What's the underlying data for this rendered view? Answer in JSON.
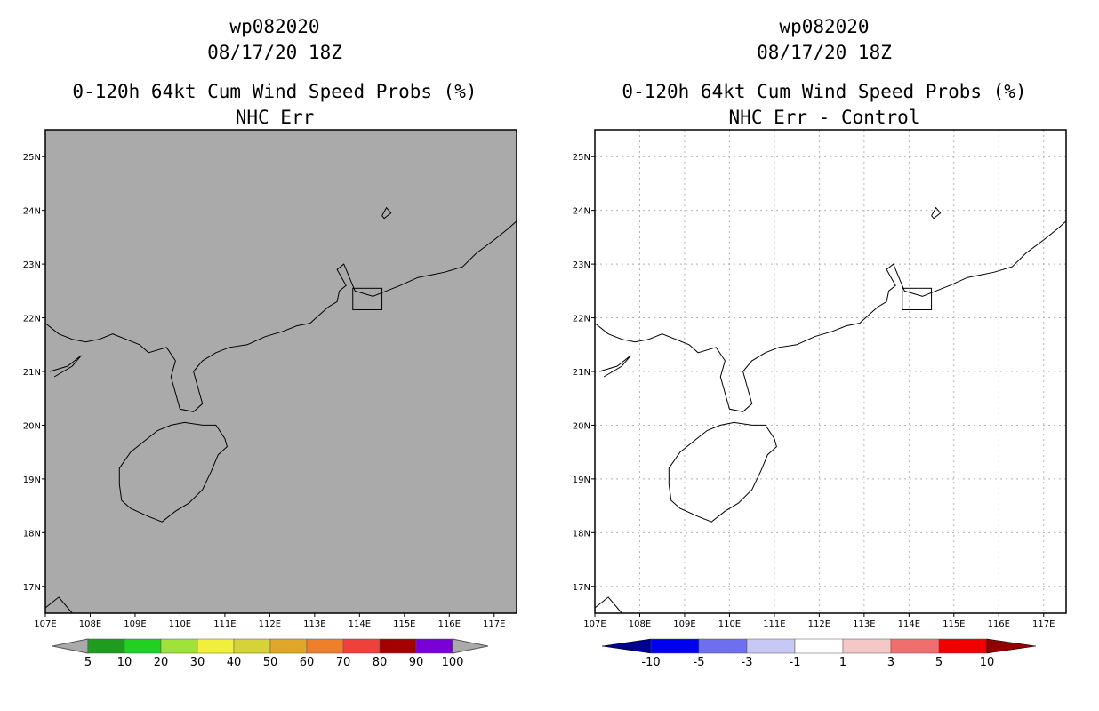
{
  "panels": [
    {
      "storm_id": "wp082020",
      "datetime": "08/17/20 18Z",
      "product": "0-120h 64kt Cum Wind Speed Probs (%)",
      "subtitle": "NHC Err",
      "background": "#aaaaaa",
      "lat_labels": [
        "25N",
        "24N",
        "23N",
        "22N",
        "21N",
        "20N",
        "19N",
        "18N",
        "17N"
      ],
      "lon_labels": [
        "107E",
        "108E",
        "109E",
        "110E",
        "111E",
        "112E",
        "113E",
        "114E",
        "115E",
        "116E",
        "117E"
      ],
      "colorbar": {
        "colors": [
          "#1f9b1f",
          "#21d021",
          "#9fe23a",
          "#f0f03c",
          "#d6d23a",
          "#e0a82a",
          "#f07f2a",
          "#f0403c",
          "#a40000",
          "#7a00d8"
        ],
        "arrow_color": "#aaaaaa",
        "labels": [
          "5",
          "10",
          "20",
          "30",
          "40",
          "50",
          "60",
          "70",
          "80",
          "90",
          "100"
        ]
      }
    },
    {
      "storm_id": "wp082020",
      "datetime": "08/17/20 18Z",
      "product": "0-120h 64kt Cum Wind Speed Probs (%)",
      "subtitle": "NHC Err - Control",
      "background": "#ffffff",
      "lat_labels": [
        "25N",
        "24N",
        "23N",
        "22N",
        "21N",
        "20N",
        "19N",
        "18N",
        "17N"
      ],
      "lon_labels": [
        "107E",
        "108E",
        "109E",
        "110E",
        "111E",
        "112E",
        "113E",
        "114E",
        "115E",
        "116E",
        "117E"
      ],
      "colorbar": {
        "colors": [
          "#0000f0",
          "#6e6ef0",
          "#c8c8f5",
          "#ffffff",
          "#f5c8c8",
          "#f06e6e",
          "#f00000"
        ],
        "left_arrow_color": "#000090",
        "right_arrow_color": "#900000",
        "labels": [
          "-10",
          "-5",
          "-3",
          "-1",
          "1",
          "3",
          "5",
          "10"
        ]
      }
    }
  ]
}
